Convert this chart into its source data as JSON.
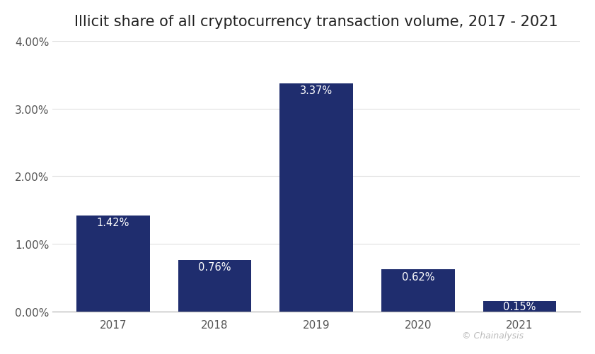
{
  "title": "Illicit share of all cryptocurrency transaction volume, 2017 - 2021",
  "categories": [
    "2017",
    "2018",
    "2019",
    "2020",
    "2021"
  ],
  "values": [
    1.42,
    0.76,
    3.37,
    0.62,
    0.15
  ],
  "labels": [
    "1.42%",
    "0.76%",
    "3.37%",
    "0.62%",
    "0.15%"
  ],
  "bar_color": "#1f2d6e",
  "label_color": "#ffffff",
  "background_color": "#ffffff",
  "title_fontsize": 15,
  "label_fontsize": 10.5,
  "tick_fontsize": 11,
  "ylim": [
    0,
    4.0
  ],
  "yticks": [
    0.0,
    1.0,
    2.0,
    3.0,
    4.0
  ],
  "ytick_labels": [
    "0.00%",
    "1.00%",
    "2.00%",
    "3.00%",
    "4.00%"
  ],
  "watermark": "© Chainalysis",
  "watermark_color": "#bbbbbb",
  "grid_color": "#e0e0e0",
  "bar_width": 0.72
}
